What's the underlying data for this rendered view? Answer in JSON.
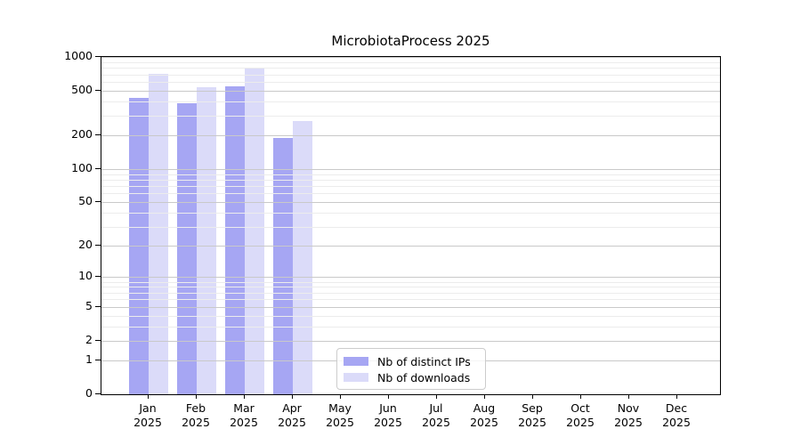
{
  "title": "MicrobiotaProcess 2025",
  "chart_data": {
    "type": "bar",
    "title": "MicrobiotaProcess 2025",
    "categories": [
      "Jan",
      "Feb",
      "Mar",
      "Apr",
      "May",
      "Jun",
      "Jul",
      "Aug",
      "Sep",
      "Oct",
      "Nov",
      "Dec"
    ],
    "category_year": "2025",
    "series": [
      {
        "name": "Nb of distinct IPs",
        "color": "#a6a6f3",
        "values": [
          434,
          387,
          543,
          191,
          null,
          null,
          null,
          null,
          null,
          null,
          null,
          null
        ]
      },
      {
        "name": "Nb of downloads",
        "color": "#dbdbf9",
        "values": [
          710,
          538,
          790,
          266,
          null,
          null,
          null,
          null,
          null,
          null,
          null,
          null
        ]
      }
    ],
    "yscale": "log1p",
    "ylim": [
      0,
      1000
    ],
    "yticks": [
      0,
      1,
      2,
      5,
      10,
      20,
      50,
      100,
      200,
      500,
      1000
    ],
    "minor_yticks": [
      3,
      4,
      6,
      7,
      8,
      9,
      30,
      40,
      60,
      70,
      80,
      90,
      300,
      400,
      600,
      700,
      800,
      900
    ],
    "grid": true,
    "legend_position": "lower center",
    "colors": {
      "major_grid": "#c9c9c9",
      "minor_grid": "#ececec",
      "axis": "#000000",
      "legend_border": "#cccccc",
      "background": "#ffffff"
    }
  }
}
